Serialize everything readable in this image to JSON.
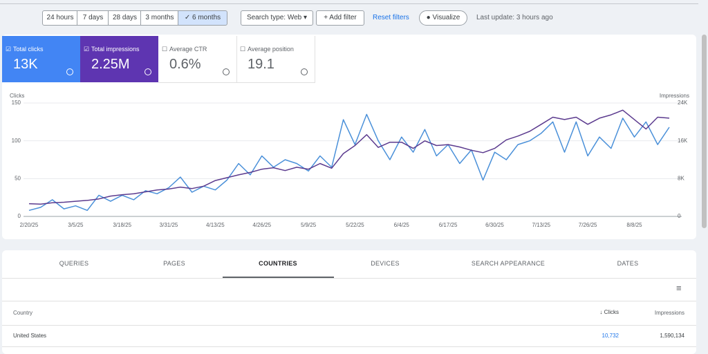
{
  "toolbar": {
    "ranges": [
      "24 hours",
      "7 days",
      "28 days",
      "3 months",
      "6 months"
    ],
    "search_type": "Search type: Web",
    "add_filter": "Add filter",
    "reset": "Reset filters",
    "visualize": "Visualize",
    "last_update": "Last update: 3 hours ago"
  },
  "metrics": [
    {
      "label": "Total clicks",
      "value": "13K"
    },
    {
      "label": "Total impressions",
      "value": "2.25M"
    },
    {
      "label": "Average CTR",
      "value": "0.6%"
    },
    {
      "label": "Average position",
      "value": "19.1"
    }
  ],
  "chart_data": {
    "type": "line",
    "y_label": "Clicks",
    "y2_label": "Impressions",
    "categories": [
      "2/20/25",
      null,
      null,
      null,
      "3/5/25",
      null,
      null,
      null,
      "3/18/25",
      null,
      null,
      null,
      "3/31/25",
      null,
      null,
      null,
      "4/13/25",
      null,
      null,
      null,
      "4/26/25",
      null,
      null,
      null,
      "5/9/25",
      null,
      null,
      null,
      "5/22/25",
      null,
      null,
      null,
      "6/4/25",
      null,
      null,
      null,
      "6/17/25",
      null,
      null,
      null,
      "6/30/25",
      null,
      null,
      null,
      "7/13/25",
      null,
      null,
      null,
      "7/26/25",
      null,
      null,
      null,
      "8/8/25",
      null,
      null,
      null
    ],
    "series": [
      {
        "color": "#4a90d9",
        "axis": "y",
        "values": [
          8,
          12,
          22,
          10,
          14,
          8,
          28,
          20,
          28,
          22,
          34,
          30,
          38,
          52,
          32,
          40,
          35,
          48,
          70,
          55,
          80,
          65,
          75,
          70,
          60,
          80,
          65,
          128,
          95,
          135,
          100,
          75,
          105,
          85,
          115,
          80,
          95,
          70,
          88,
          48,
          85,
          75,
          95,
          100,
          110,
          125,
          85,
          125,
          80,
          105,
          90,
          130,
          105,
          125,
          95,
          118
        ]
      },
      {
        "color": "#5b3a8e",
        "axis": "y2",
        "values": [
          2700,
          2600,
          2900,
          3000,
          3200,
          3400,
          3700,
          4300,
          4600,
          4800,
          5200,
          5600,
          5800,
          6200,
          5900,
          6400,
          7600,
          8200,
          8800,
          9300,
          10000,
          10300,
          9700,
          10400,
          10000,
          11200,
          10200,
          13300,
          15000,
          17300,
          14600,
          15700,
          15700,
          14400,
          16000,
          15000,
          15200,
          14700,
          14000,
          13500,
          14400,
          16200,
          17000,
          18000,
          19500,
          21000,
          20500,
          21000,
          19500,
          20800,
          21500,
          22500,
          20500,
          18500,
          21000,
          20800
        ]
      }
    ],
    "ylim": [
      0,
      150
    ],
    "yticks": [
      0,
      50,
      100,
      150
    ],
    "y2lim": [
      0,
      24000
    ],
    "y2ticks": [
      0,
      {
        "value": 8000,
        "label": "8K"
      },
      {
        "value": 16000,
        "label": "16K"
      },
      {
        "value": 24000,
        "label": "24K"
      }
    ],
    "grid": true
  },
  "tabs": [
    "QUERIES",
    "PAGES",
    "COUNTRIES",
    "DEVICES",
    "SEARCH APPEARANCE",
    "DATES"
  ],
  "table": {
    "headers": [
      "Country",
      "Clicks",
      "Impressions"
    ],
    "rows": [
      [
        "United States",
        "10,732",
        "1,590,134"
      ]
    ]
  }
}
